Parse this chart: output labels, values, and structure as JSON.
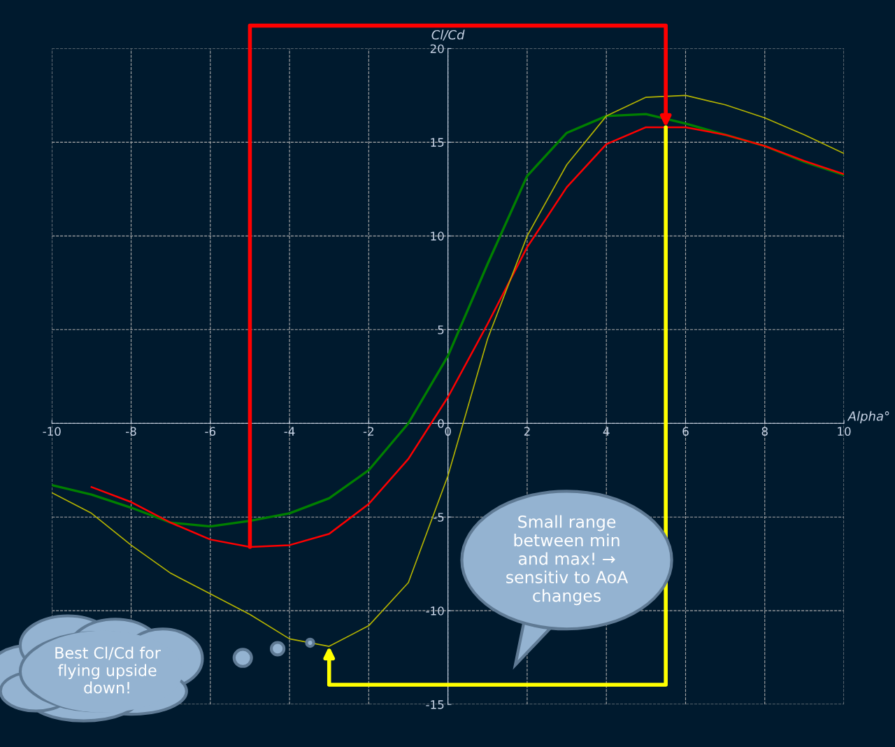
{
  "chart_data": {
    "type": "line",
    "xlabel": "Alpha°",
    "ylabel": "Cl/Cd",
    "x": [
      -10,
      -9,
      -8,
      -7,
      -6,
      -5,
      -4,
      -3,
      -2,
      -1,
      0,
      1,
      2,
      3,
      4,
      5,
      6,
      7,
      8,
      9,
      10
    ],
    "series": [
      {
        "color": "#008000",
        "values": [
          -3.3,
          -3.8,
          -4.5,
          -5.3,
          -5.5,
          -5.2,
          -4.8,
          -4.0,
          -2.5,
          0.0,
          3.6,
          8.5,
          13.2,
          15.5,
          16.4,
          16.5,
          16.0,
          15.4,
          14.8,
          13.95,
          13.25
        ]
      },
      {
        "color": "#ff0000",
        "values": [
          null,
          -3.4,
          -4.2,
          -5.3,
          -6.2,
          -6.6,
          -6.5,
          -5.9,
          -4.3,
          -1.9,
          1.4,
          5.3,
          9.4,
          12.6,
          14.9,
          15.8,
          15.8,
          15.4,
          14.8,
          14.0,
          13.3
        ]
      },
      {
        "color": "#b3b300",
        "values": [
          -3.7,
          -4.8,
          -6.5,
          -8.0,
          -9.1,
          -10.2,
          -11.5,
          -11.9,
          -10.8,
          -8.5,
          -2.8,
          4.5,
          10.0,
          13.8,
          16.4,
          17.4,
          17.5,
          17.0,
          16.3,
          15.4,
          14.4
        ]
      }
    ],
    "xlim": [
      -10,
      10
    ],
    "xticks": [
      -10,
      -8,
      -6,
      -4,
      -2,
      0,
      2,
      4,
      6,
      8,
      10
    ],
    "ylim": [
      -15,
      20
    ],
    "yticks": [
      -15,
      -10,
      -5,
      0,
      5,
      10,
      15,
      20
    ],
    "grid": true,
    "marker": "none",
    "line_style": "solid",
    "annotations": [
      "Small range between min and max! → sensitiv to AoA changes",
      "Best Cl/Cd for flying upside down!"
    ]
  }
}
